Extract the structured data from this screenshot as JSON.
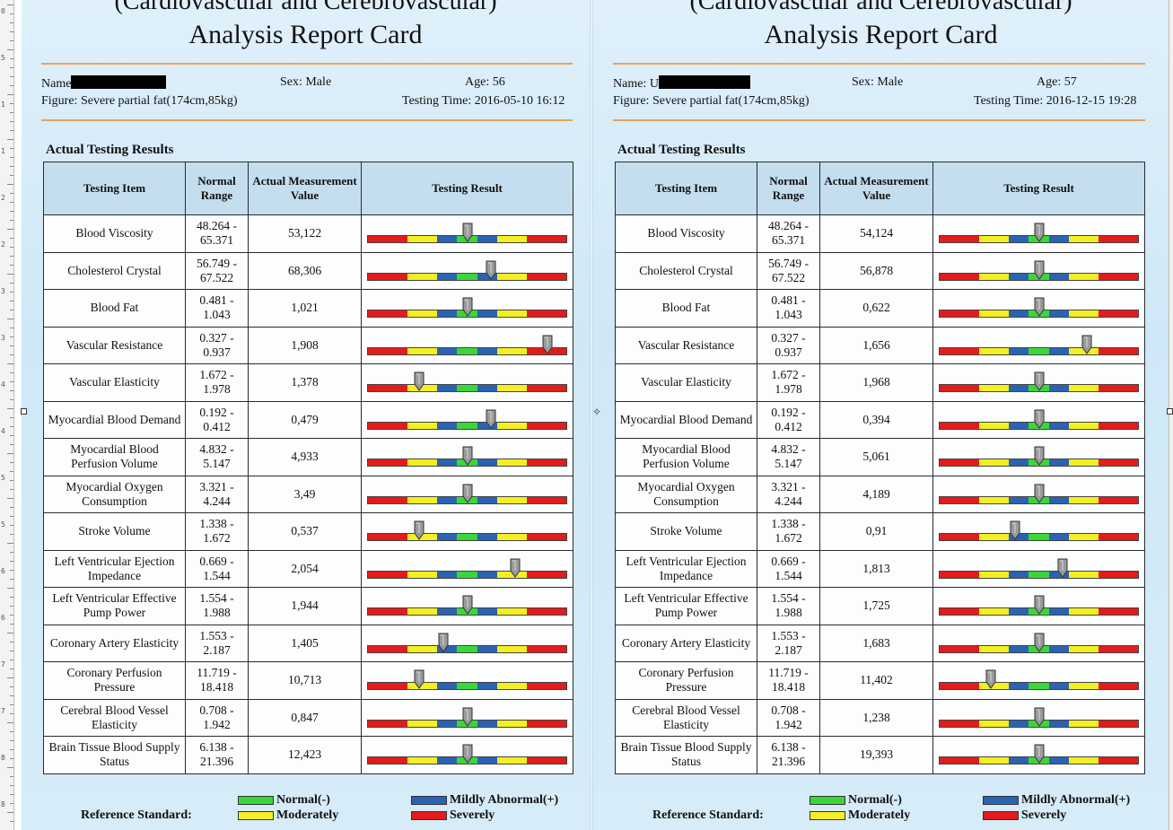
{
  "colors": {
    "normal": "#39d838",
    "mild": "#2a63b3",
    "moderate": "#f3ef22",
    "severe": "#e41b1b",
    "header": "#c4def0",
    "accent": "#e8a256"
  },
  "ruler": {
    "numbers": [
      "0",
      "5",
      "1",
      "1",
      "2",
      "2",
      "3",
      "3",
      "4",
      "4",
      "5",
      "5",
      "6",
      "6",
      "7",
      "7",
      "8",
      "8"
    ]
  },
  "reports": [
    {
      "header_top": "(Cardiovascular and Cerebrovascular)",
      "title": "Analysis Report Card",
      "name_label": "Name",
      "sex": "Sex: Male",
      "age": "Age: 56",
      "figure": "Figure: Severe partial fat(174cm,85kg)",
      "testing_time": "Testing Time: 2016-05-10 16:12",
      "section_title": "Actual Testing Results",
      "columns": [
        "Testing Item",
        "Normal Range",
        "Actual Measurement Value",
        "Testing Result"
      ],
      "rows": [
        {
          "item": "Blood Viscosity",
          "range": "48.264 - 65.371",
          "value": "53,122",
          "level": 0.5
        },
        {
          "item": "Cholesterol Crystal",
          "range": "56.749 - 67.522",
          "value": "68,306",
          "level": 0.62
        },
        {
          "item": "Blood Fat",
          "range": "0.481 - 1.043",
          "value": "1,021",
          "level": 0.5
        },
        {
          "item": "Vascular Resistance",
          "range": "0.327 - 0.937",
          "value": "1,908",
          "level": 0.9
        },
        {
          "item": "Vascular Elasticity",
          "range": "1.672 - 1.978",
          "value": "1,378",
          "level": 0.26
        },
        {
          "item": "Myocardial Blood Demand",
          "range": "0.192 - 0.412",
          "value": "0,479",
          "level": 0.62
        },
        {
          "item": "Myocardial Blood Perfusion Volume",
          "range": "4.832 - 5.147",
          "value": "4,933",
          "level": 0.5
        },
        {
          "item": "Myocardial Oxygen Consumption",
          "range": "3.321 - 4.244",
          "value": "3,49",
          "level": 0.5
        },
        {
          "item": "Stroke Volume",
          "range": "1.338 - 1.672",
          "value": "0,537",
          "level": 0.26
        },
        {
          "item": "Left Ventricular Ejection Impedance",
          "range": "0.669 - 1.544",
          "value": "2,054",
          "level": 0.74
        },
        {
          "item": "Left Ventricular Effective Pump Power",
          "range": "1.554 - 1.988",
          "value": "1,944",
          "level": 0.5
        },
        {
          "item": "Coronary Artery Elasticity",
          "range": "1.553 - 2.187",
          "value": "1,405",
          "level": 0.38
        },
        {
          "item": "Coronary Perfusion Pressure",
          "range": "11.719 - 18.418",
          "value": "10,713",
          "level": 0.26
        },
        {
          "item": "Cerebral Blood Vessel Elasticity",
          "range": "0.708 - 1.942",
          "value": "0,847",
          "level": 0.5
        },
        {
          "item": "Brain Tissue Blood Supply Status",
          "range": "6.138 - 21.396",
          "value": "12,423",
          "level": 0.5
        }
      ],
      "reference_label": "Reference Standard:",
      "legend": [
        "Normal(-)",
        "Mildly Abnormal(+)",
        "Moderately",
        "Severely"
      ]
    },
    {
      "header_top": "(Cardiovascular and Cerebrovascular)",
      "title": "Analysis Report Card",
      "name_label": "Name: U",
      "sex": "Sex: Male",
      "age": "Age: 57",
      "figure": "Figure: Severe partial fat(174cm,85kg)",
      "testing_time": "Testing Time: 2016-12-15 19:28",
      "section_title": "Actual Testing Results",
      "columns": [
        "Testing Item",
        "Normal Range",
        "Actual Measurement Value",
        "Testing Result"
      ],
      "rows": [
        {
          "item": "Blood Viscosity",
          "range": "48.264 - 65.371",
          "value": "54,124",
          "level": 0.5
        },
        {
          "item": "Cholesterol Crystal",
          "range": "56.749 - 67.522",
          "value": "56,878",
          "level": 0.5
        },
        {
          "item": "Blood Fat",
          "range": "0.481 - 1.043",
          "value": "0,622",
          "level": 0.5
        },
        {
          "item": "Vascular Resistance",
          "range": "0.327 - 0.937",
          "value": "1,656",
          "level": 0.74
        },
        {
          "item": "Vascular Elasticity",
          "range": "1.672 - 1.978",
          "value": "1,968",
          "level": 0.5
        },
        {
          "item": "Myocardial Blood Demand",
          "range": "0.192 - 0.412",
          "value": "0,394",
          "level": 0.5
        },
        {
          "item": "Myocardial Blood Perfusion Volume",
          "range": "4.832 - 5.147",
          "value": "5,061",
          "level": 0.5
        },
        {
          "item": "Myocardial Oxygen Consumption",
          "range": "3.321 - 4.244",
          "value": "4,189",
          "level": 0.5
        },
        {
          "item": "Stroke Volume",
          "range": "1.338 - 1.672",
          "value": "0,91",
          "level": 0.38
        },
        {
          "item": "Left Ventricular Ejection Impedance",
          "range": "0.669 - 1.544",
          "value": "1,813",
          "level": 0.62
        },
        {
          "item": "Left Ventricular Effective Pump Power",
          "range": "1.554 - 1.988",
          "value": "1,725",
          "level": 0.5
        },
        {
          "item": "Coronary Artery Elasticity",
          "range": "1.553 - 2.187",
          "value": "1,683",
          "level": 0.5
        },
        {
          "item": "Coronary Perfusion Pressure",
          "range": "11.719 - 18.418",
          "value": "11,402",
          "level": 0.26
        },
        {
          "item": "Cerebral Blood Vessel Elasticity",
          "range": "0.708 - 1.942",
          "value": "1,238",
          "level": 0.5
        },
        {
          "item": "Brain Tissue Blood Supply Status",
          "range": "6.138 - 21.396",
          "value": "19,393",
          "level": 0.5
        }
      ],
      "reference_label": "Reference Standard:",
      "legend": [
        "Normal(-)",
        "Mildly Abnormal(+)",
        "Moderately",
        "Severely"
      ]
    }
  ]
}
